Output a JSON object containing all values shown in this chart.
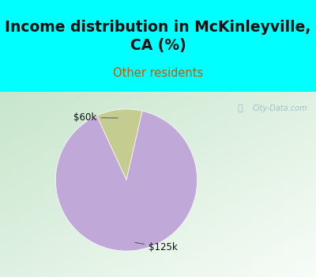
{
  "title": "Income distribution in McKinleyville,\nCA (%)",
  "subtitle": "Other residents",
  "title_color": "#111111",
  "subtitle_color": "#cc5500",
  "title_bg_color": "#00ffff",
  "border_color": "#00ffff",
  "border_width": 5,
  "slices": [
    {
      "label": "$60k",
      "value": 10.5,
      "color": "#c5cc90"
    },
    {
      "label": "$125k",
      "value": 89.5,
      "color": "#c0a8d8"
    }
  ],
  "startangle": 77,
  "watermark": "City-Data.com",
  "watermark_color": "#99bbcc",
  "watermark_icon_color": "#88aacc",
  "gradient_color_green": [
    0.78,
    0.9,
    0.8
  ],
  "gradient_color_white": [
    0.97,
    0.99,
    0.97
  ],
  "annotation_color": "#555544",
  "label_fontsize": 8.5
}
